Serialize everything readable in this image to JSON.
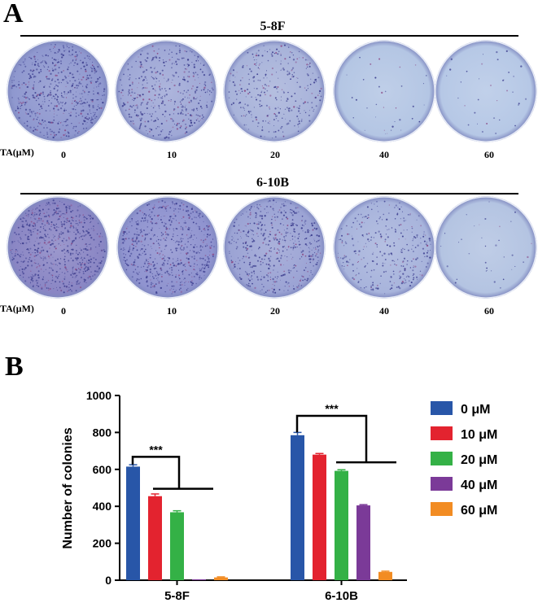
{
  "panel_a": {
    "letter": "A",
    "ta_label": "TA(μM)",
    "rows": [
      {
        "title": "5-8F",
        "concentrations": [
          "0",
          "10",
          "20",
          "40",
          "60"
        ],
        "colony_density": [
          0.85,
          0.65,
          0.45,
          0.05,
          0.05
        ],
        "plate_colors": [
          "#8f98cf",
          "#9fa8d6",
          "#a8b3da",
          "#b4c6e4",
          "#b6c8e6"
        ]
      },
      {
        "title": "6-10B",
        "concentrations": [
          "0",
          "10",
          "20",
          "40",
          "60"
        ],
        "colony_density": [
          1.0,
          0.9,
          0.75,
          0.45,
          0.05
        ],
        "plate_colors": [
          "#8a86c4",
          "#8f93cf",
          "#9ba3d4",
          "#a8b4dc",
          "#b4c4e2"
        ]
      }
    ]
  },
  "panel_b": {
    "letter": "B"
  },
  "chart_data": {
    "type": "bar",
    "title": "",
    "ylabel": "Number of colonies",
    "xlabel": "",
    "ylim": [
      0,
      1000
    ],
    "yticks": [
      "0",
      "200",
      "400",
      "600",
      "800",
      "1000"
    ],
    "categories": [
      "5-8F",
      "6-10B"
    ],
    "series": [
      {
        "name": "0 μM",
        "color": "#2856a8",
        "values": [
          615,
          785
        ],
        "errors": [
          10,
          15
        ]
      },
      {
        "name": "10 μM",
        "color": "#e3232f",
        "values": [
          455,
          680
        ],
        "errors": [
          12,
          6
        ]
      },
      {
        "name": "20 μM",
        "color": "#34b146",
        "values": [
          368,
          592
        ],
        "errors": [
          8,
          6
        ]
      },
      {
        "name": "40 μM",
        "color": "#7b3a98",
        "values": [
          5,
          405
        ],
        "errors": [
          0,
          4
        ]
      },
      {
        "name": "60 μM",
        "color": "#f28c23",
        "values": [
          15,
          45
        ],
        "errors": [
          3,
          4
        ]
      }
    ],
    "annotations": [
      "***",
      "***"
    ],
    "legend_position": "right",
    "grid": false
  }
}
